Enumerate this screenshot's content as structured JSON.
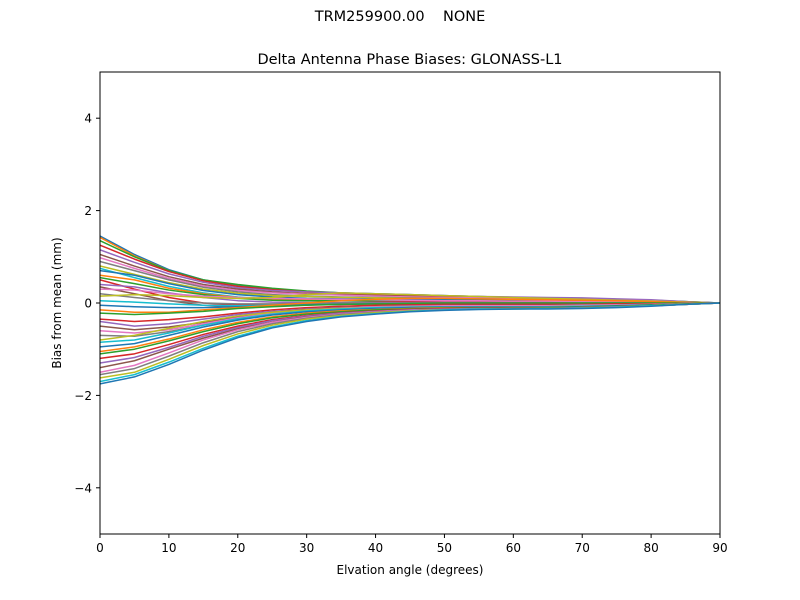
{
  "figure": {
    "suptitle": "TRM259900.00    NONE"
  },
  "chart_data": {
    "type": "line",
    "title": "Delta Antenna Phase Biases: GLONASS-L1",
    "xlabel": "Elvation angle (degrees)",
    "ylabel": "Bias from mean (mm)",
    "xlim": [
      0,
      90
    ],
    "ylim": [
      -5,
      5
    ],
    "xticks": [
      0,
      10,
      20,
      30,
      40,
      50,
      60,
      70,
      80,
      90
    ],
    "yticks": [
      -4,
      -2,
      0,
      2,
      4
    ],
    "xtick_labels": [
      "0",
      "10",
      "20",
      "30",
      "40",
      "50",
      "60",
      "70",
      "80",
      "90"
    ],
    "ytick_labels": [
      "−4",
      "−2",
      "0",
      "2",
      "4"
    ],
    "grid": false,
    "legend": "none",
    "x": [
      0,
      5,
      10,
      15,
      20,
      25,
      30,
      35,
      40,
      45,
      50,
      55,
      60,
      65,
      70,
      75,
      80,
      85,
      90
    ],
    "colors": [
      "#1f77b4",
      "#ff7f0e",
      "#2ca02c",
      "#d62728",
      "#9467bd",
      "#8c564b",
      "#e377c2",
      "#7f7f7f",
      "#bcbd22",
      "#17becf"
    ],
    "series": [
      {
        "values": [
          1.45,
          1.05,
          0.72,
          0.5,
          0.38,
          0.3,
          0.25,
          0.22,
          0.2,
          0.18,
          0.16,
          0.14,
          0.12,
          0.11,
          0.1,
          0.08,
          0.06,
          0.03,
          0.0
        ]
      },
      {
        "values": [
          1.42,
          1.02,
          0.7,
          0.48,
          0.36,
          0.28,
          0.23,
          0.2,
          0.18,
          0.16,
          0.14,
          0.12,
          0.1,
          0.09,
          0.08,
          0.06,
          0.05,
          0.02,
          0.0
        ]
      },
      {
        "values": [
          1.35,
          1.0,
          0.7,
          0.5,
          0.4,
          0.32,
          0.26,
          0.22,
          0.19,
          0.17,
          0.15,
          0.13,
          0.12,
          0.11,
          0.1,
          0.08,
          0.06,
          0.03,
          0.0
        ]
      },
      {
        "values": [
          1.25,
          0.95,
          0.68,
          0.48,
          0.36,
          0.29,
          0.24,
          0.21,
          0.19,
          0.17,
          0.15,
          0.13,
          0.12,
          0.1,
          0.09,
          0.07,
          0.05,
          0.02,
          0.0
        ]
      },
      {
        "values": [
          1.15,
          0.88,
          0.63,
          0.45,
          0.33,
          0.27,
          0.24,
          0.22,
          0.2,
          0.18,
          0.16,
          0.14,
          0.13,
          0.12,
          0.11,
          0.09,
          0.07,
          0.03,
          0.0
        ]
      },
      {
        "values": [
          1.05,
          0.8,
          0.57,
          0.4,
          0.3,
          0.24,
          0.2,
          0.18,
          0.16,
          0.14,
          0.12,
          0.1,
          0.09,
          0.08,
          0.07,
          0.06,
          0.04,
          0.02,
          0.0
        ]
      },
      {
        "values": [
          0.98,
          0.75,
          0.53,
          0.37,
          0.27,
          0.22,
          0.19,
          0.17,
          0.15,
          0.13,
          0.12,
          0.11,
          0.1,
          0.09,
          0.08,
          0.06,
          0.05,
          0.02,
          0.0
        ]
      },
      {
        "values": [
          0.9,
          0.7,
          0.5,
          0.34,
          0.24,
          0.18,
          0.15,
          0.13,
          0.12,
          0.11,
          0.1,
          0.09,
          0.08,
          0.07,
          0.06,
          0.05,
          0.04,
          0.02,
          0.0
        ]
      },
      {
        "values": [
          0.8,
          0.62,
          0.44,
          0.3,
          0.21,
          0.16,
          0.14,
          0.12,
          0.11,
          0.1,
          0.09,
          0.08,
          0.07,
          0.06,
          0.05,
          0.04,
          0.03,
          0.01,
          0.0
        ]
      },
      {
        "values": [
          0.75,
          0.55,
          0.36,
          0.22,
          0.13,
          0.08,
          0.06,
          0.05,
          0.05,
          0.05,
          0.05,
          0.05,
          0.05,
          0.05,
          0.04,
          0.04,
          0.03,
          0.01,
          0.0
        ]
      },
      {
        "values": [
          0.7,
          0.6,
          0.42,
          0.27,
          0.18,
          0.13,
          0.1,
          0.09,
          0.08,
          0.07,
          0.07,
          0.06,
          0.06,
          0.05,
          0.05,
          0.04,
          0.03,
          0.01,
          0.0
        ]
      },
      {
        "values": [
          0.6,
          0.5,
          0.32,
          0.2,
          0.12,
          0.08,
          0.06,
          0.05,
          0.05,
          0.04,
          0.04,
          0.04,
          0.04,
          0.04,
          0.03,
          0.03,
          0.02,
          0.01,
          0.0
        ]
      },
      {
        "values": [
          0.55,
          0.42,
          0.28,
          0.18,
          0.1,
          0.06,
          0.05,
          0.05,
          0.05,
          0.05,
          0.05,
          0.05,
          0.05,
          0.04,
          0.04,
          0.03,
          0.02,
          0.01,
          0.0
        ]
      },
      {
        "values": [
          0.5,
          0.3,
          0.12,
          0.0,
          -0.05,
          -0.04,
          -0.02,
          0.0,
          0.02,
          0.03,
          0.04,
          0.04,
          0.04,
          0.04,
          0.03,
          0.03,
          0.02,
          0.01,
          0.0
        ]
      },
      {
        "values": [
          0.4,
          0.35,
          0.22,
          0.12,
          0.05,
          0.02,
          0.01,
          0.01,
          0.01,
          0.01,
          0.01,
          0.01,
          0.01,
          0.01,
          0.01,
          0.01,
          0.01,
          0.0,
          0.0
        ]
      },
      {
        "values": [
          0.35,
          0.2,
          0.05,
          -0.05,
          -0.08,
          -0.06,
          -0.04,
          -0.02,
          -0.01,
          0.0,
          0.0,
          0.0,
          0.0,
          0.0,
          0.0,
          0.0,
          0.0,
          0.0,
          0.0
        ]
      },
      {
        "values": [
          0.3,
          0.28,
          0.2,
          0.15,
          0.12,
          0.1,
          0.09,
          0.08,
          0.07,
          0.06,
          0.05,
          0.05,
          0.04,
          0.04,
          0.03,
          0.03,
          0.02,
          0.01,
          0.0
        ]
      },
      {
        "values": [
          0.2,
          0.12,
          0.05,
          0.0,
          -0.02,
          -0.02,
          -0.01,
          0.0,
          0.0,
          0.0,
          0.0,
          0.0,
          0.0,
          0.0,
          0.0,
          0.0,
          0.0,
          0.0,
          0.0
        ]
      },
      {
        "values": [
          0.15,
          0.18,
          0.16,
          0.12,
          0.1,
          0.12,
          0.18,
          0.22,
          0.2,
          0.18,
          0.16,
          0.14,
          0.12,
          0.1,
          0.08,
          0.06,
          0.04,
          0.02,
          0.0
        ]
      },
      {
        "values": [
          0.05,
          0.02,
          -0.02,
          -0.05,
          -0.06,
          -0.05,
          -0.04,
          -0.03,
          -0.02,
          -0.02,
          -0.01,
          -0.01,
          -0.01,
          -0.01,
          0.0,
          0.0,
          0.0,
          0.0,
          0.0
        ]
      },
      {
        "values": [
          -0.05,
          -0.08,
          -0.1,
          -0.1,
          -0.08,
          -0.06,
          -0.04,
          -0.03,
          -0.02,
          -0.02,
          -0.02,
          -0.02,
          -0.02,
          -0.01,
          -0.01,
          -0.01,
          0.0,
          0.0,
          0.0
        ]
      },
      {
        "values": [
          -0.15,
          -0.2,
          -0.2,
          -0.15,
          -0.1,
          -0.05,
          0.0,
          0.05,
          0.08,
          0.1,
          0.1,
          0.09,
          0.08,
          0.07,
          0.06,
          0.05,
          0.03,
          0.01,
          0.0
        ]
      },
      {
        "values": [
          -0.22,
          -0.25,
          -0.22,
          -0.18,
          -0.12,
          -0.08,
          -0.05,
          -0.03,
          -0.02,
          -0.01,
          0.0,
          0.0,
          0.0,
          0.0,
          0.0,
          0.0,
          0.0,
          0.0,
          0.0
        ]
      },
      {
        "values": [
          -0.35,
          -0.4,
          -0.36,
          -0.3,
          -0.22,
          -0.15,
          -0.1,
          -0.07,
          -0.05,
          -0.04,
          -0.03,
          -0.03,
          -0.03,
          -0.03,
          -0.03,
          -0.02,
          -0.02,
          -0.01,
          0.0
        ]
      },
      {
        "values": [
          -0.4,
          -0.5,
          -0.45,
          -0.35,
          -0.25,
          -0.18,
          -0.13,
          -0.1,
          -0.08,
          -0.07,
          -0.06,
          -0.06,
          -0.06,
          -0.06,
          -0.05,
          -0.04,
          -0.03,
          -0.01,
          0.0
        ]
      },
      {
        "values": [
          -0.5,
          -0.58,
          -0.52,
          -0.42,
          -0.3,
          -0.2,
          -0.14,
          -0.1,
          -0.08,
          -0.06,
          -0.05,
          -0.05,
          -0.05,
          -0.05,
          -0.04,
          -0.04,
          -0.03,
          -0.01,
          0.0
        ]
      },
      {
        "values": [
          -0.6,
          -0.65,
          -0.58,
          -0.45,
          -0.32,
          -0.22,
          -0.15,
          -0.11,
          -0.08,
          -0.07,
          -0.06,
          -0.06,
          -0.06,
          -0.06,
          -0.05,
          -0.04,
          -0.03,
          -0.01,
          0.0
        ]
      },
      {
        "values": [
          -0.7,
          -0.72,
          -0.62,
          -0.48,
          -0.35,
          -0.25,
          -0.18,
          -0.14,
          -0.11,
          -0.09,
          -0.08,
          -0.08,
          -0.08,
          -0.08,
          -0.07,
          -0.06,
          -0.04,
          -0.02,
          0.0
        ]
      },
      {
        "values": [
          -0.8,
          -0.7,
          -0.55,
          -0.4,
          -0.28,
          -0.2,
          -0.15,
          -0.12,
          -0.1,
          -0.09,
          -0.08,
          -0.08,
          -0.08,
          -0.08,
          -0.07,
          -0.06,
          -0.04,
          -0.02,
          0.0
        ]
      },
      {
        "values": [
          -0.85,
          -0.8,
          -0.65,
          -0.48,
          -0.34,
          -0.24,
          -0.17,
          -0.13,
          -0.1,
          -0.09,
          -0.08,
          -0.08,
          -0.08,
          -0.08,
          -0.07,
          -0.06,
          -0.04,
          -0.02,
          0.0
        ]
      },
      {
        "values": [
          -0.95,
          -0.88,
          -0.7,
          -0.52,
          -0.37,
          -0.26,
          -0.19,
          -0.15,
          -0.12,
          -0.1,
          -0.09,
          -0.09,
          -0.09,
          -0.09,
          -0.08,
          -0.06,
          -0.04,
          -0.02,
          0.0
        ]
      },
      {
        "values": [
          -1.05,
          -0.95,
          -0.78,
          -0.58,
          -0.42,
          -0.3,
          -0.22,
          -0.17,
          -0.14,
          -0.12,
          -0.1,
          -0.1,
          -0.1,
          -0.1,
          -0.09,
          -0.07,
          -0.05,
          -0.02,
          0.0
        ]
      },
      {
        "values": [
          -1.1,
          -1.0,
          -0.82,
          -0.62,
          -0.45,
          -0.32,
          -0.24,
          -0.19,
          -0.15,
          -0.13,
          -0.11,
          -0.1,
          -0.1,
          -0.1,
          -0.09,
          -0.07,
          -0.05,
          -0.02,
          0.0
        ]
      },
      {
        "values": [
          -1.2,
          -1.1,
          -0.9,
          -0.68,
          -0.5,
          -0.36,
          -0.27,
          -0.21,
          -0.17,
          -0.14,
          -0.12,
          -0.11,
          -0.11,
          -0.11,
          -0.1,
          -0.08,
          -0.06,
          -0.03,
          0.0
        ]
      },
      {
        "values": [
          -1.3,
          -1.18,
          -0.96,
          -0.72,
          -0.53,
          -0.38,
          -0.28,
          -0.22,
          -0.18,
          -0.15,
          -0.13,
          -0.12,
          -0.12,
          -0.12,
          -0.1,
          -0.08,
          -0.06,
          -0.03,
          0.0
        ]
      },
      {
        "values": [
          -1.4,
          -1.25,
          -1.0,
          -0.76,
          -0.56,
          -0.41,
          -0.3,
          -0.24,
          -0.19,
          -0.16,
          -0.14,
          -0.13,
          -0.12,
          -0.12,
          -0.11,
          -0.09,
          -0.06,
          -0.03,
          0.0
        ]
      },
      {
        "values": [
          -1.5,
          -1.35,
          -1.08,
          -0.8,
          -0.58,
          -0.42,
          -0.31,
          -0.24,
          -0.19,
          -0.16,
          -0.14,
          -0.13,
          -0.12,
          -0.12,
          -0.11,
          -0.09,
          -0.06,
          -0.03,
          0.0
        ]
      },
      {
        "values": [
          -1.55,
          -1.42,
          -1.15,
          -0.86,
          -0.62,
          -0.45,
          -0.33,
          -0.25,
          -0.2,
          -0.17,
          -0.14,
          -0.13,
          -0.12,
          -0.12,
          -0.11,
          -0.09,
          -0.06,
          -0.03,
          0.0
        ]
      },
      {
        "values": [
          -1.62,
          -1.5,
          -1.22,
          -0.92,
          -0.67,
          -0.48,
          -0.35,
          -0.27,
          -0.21,
          -0.17,
          -0.15,
          -0.13,
          -0.13,
          -0.12,
          -0.11,
          -0.09,
          -0.06,
          -0.03,
          0.0
        ]
      },
      {
        "values": [
          -1.7,
          -1.55,
          -1.28,
          -0.98,
          -0.72,
          -0.52,
          -0.38,
          -0.29,
          -0.23,
          -0.18,
          -0.15,
          -0.13,
          -0.13,
          -0.12,
          -0.11,
          -0.09,
          -0.06,
          -0.03,
          0.0
        ]
      },
      {
        "values": [
          -1.75,
          -1.6,
          -1.33,
          -1.02,
          -0.75,
          -0.54,
          -0.4,
          -0.3,
          -0.24,
          -0.19,
          -0.16,
          -0.14,
          -0.13,
          -0.13,
          -0.12,
          -0.1,
          -0.07,
          -0.03,
          0.0
        ]
      }
    ]
  }
}
